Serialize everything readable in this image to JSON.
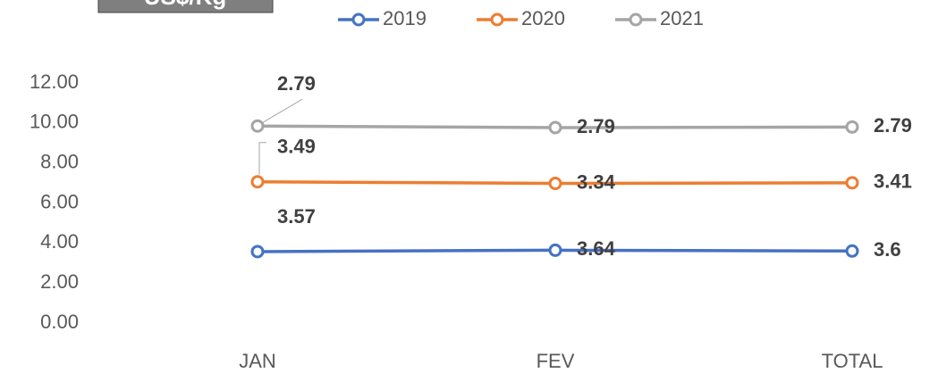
{
  "chart_data": {
    "type": "line",
    "stacked": true,
    "title": "US$/Kg",
    "categories": [
      "JAN",
      "FEV",
      "TOTAL"
    ],
    "series": [
      {
        "name": "2019",
        "color": "#4472c4",
        "values": [
          3.57,
          3.64,
          3.6
        ]
      },
      {
        "name": "2020",
        "color": "#ed7d31",
        "values": [
          3.49,
          3.34,
          3.41
        ]
      },
      {
        "name": "2021",
        "color": "#a5a5a5",
        "values": [
          2.79,
          2.79,
          2.79
        ]
      }
    ],
    "ylim": [
      0,
      12
    ],
    "yticks": [
      {
        "value": 0,
        "label": "0.00"
      },
      {
        "value": 2,
        "label": "2.00"
      },
      {
        "value": 4,
        "label": "4.00"
      },
      {
        "value": 6,
        "label": "6.00"
      },
      {
        "value": 8,
        "label": "8.00"
      },
      {
        "value": 10,
        "label": "10.00"
      },
      {
        "value": 12,
        "label": "12.00"
      }
    ],
    "legend": "top"
  }
}
